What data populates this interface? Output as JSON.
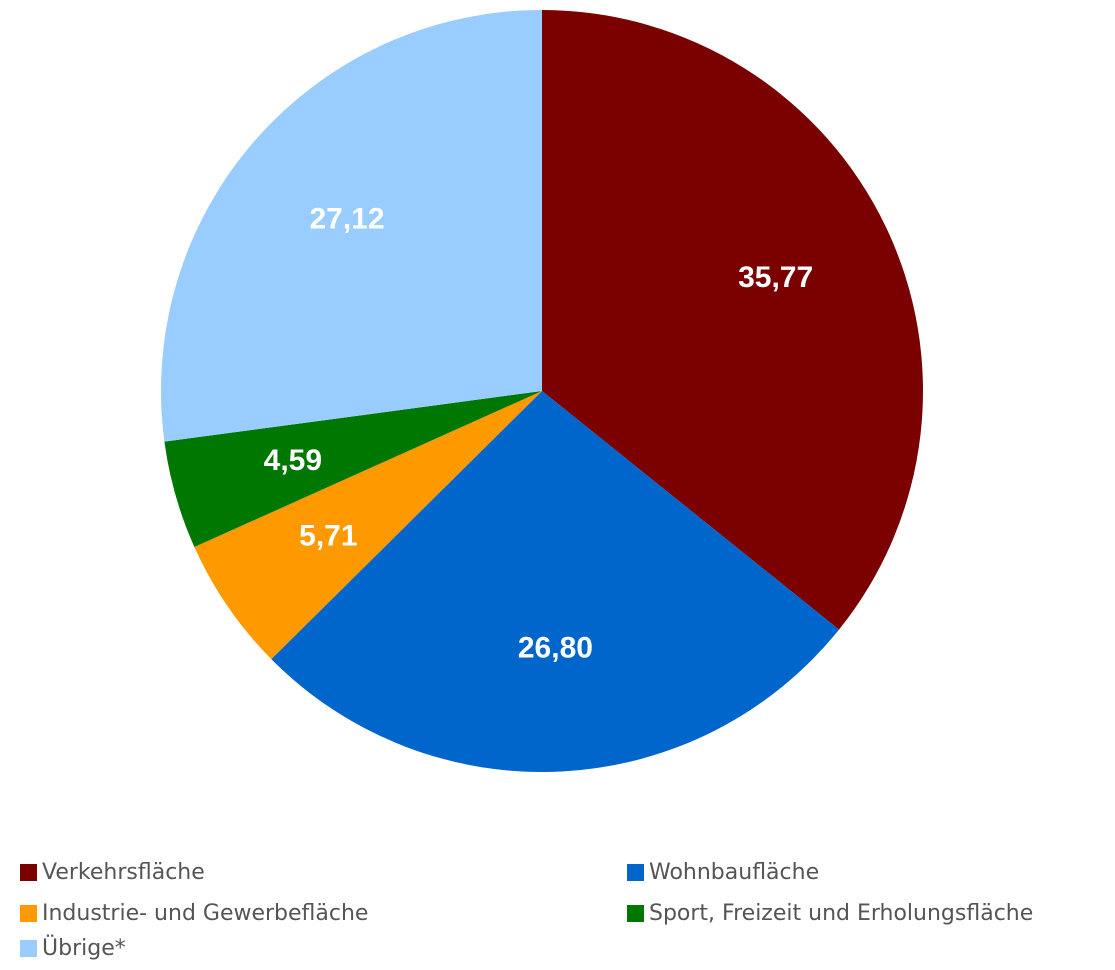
{
  "chart_data": {
    "type": "pie",
    "title": "",
    "slices": [
      {
        "label": "Verkehrsfläche",
        "value": 35.77,
        "display": "35,77",
        "color": "#7b0000"
      },
      {
        "label": "Wohnbaufläche",
        "value": 26.8,
        "display": "26,80",
        "color": "#0066cc"
      },
      {
        "label": "Industrie- und Gewerbefläche",
        "value": 5.71,
        "display": "5,71",
        "color": "#ff9900"
      },
      {
        "label": "Sport, Freizeit und Erholungsfläche",
        "value": 4.59,
        "display": "4,59",
        "color": "#007700"
      },
      {
        "label": "Übrige*",
        "value": 27.12,
        "display": "27,12",
        "color": "#99ccff"
      }
    ],
    "start_angle": "12 o'clock",
    "direction": "clockwise",
    "legend_placement": "bottom"
  }
}
